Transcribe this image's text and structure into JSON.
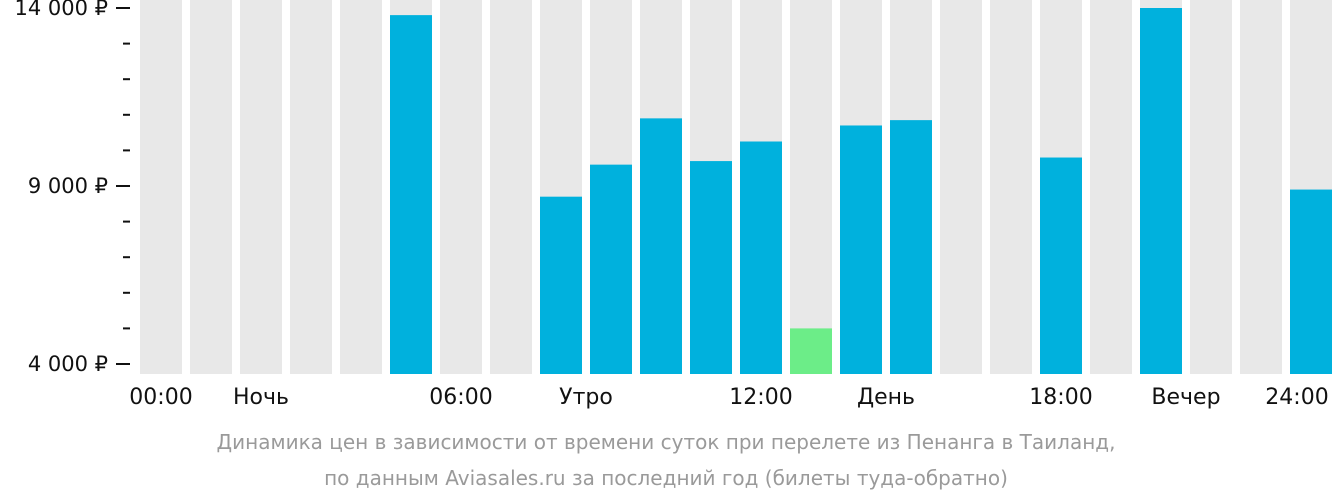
{
  "chart_data": {
    "type": "bar",
    "y_unit": "₽",
    "ylim": [
      4000,
      14000
    ],
    "y_ticks": [
      {
        "value": 4000,
        "label": "4 000 ₽"
      },
      {
        "value": 9000,
        "label": "9 000 ₽"
      },
      {
        "value": 14000,
        "label": "14 000 ₽"
      }
    ],
    "y_minor_ticks": [
      5000,
      6000,
      7000,
      8000,
      10000,
      11000,
      12000,
      13000
    ],
    "x_labels": [
      {
        "slot": 0,
        "label": "00:00"
      },
      {
        "slot": 2,
        "label": "Ночь"
      },
      {
        "slot": 6,
        "label": "06:00"
      },
      {
        "slot": 8.5,
        "label": "Утро"
      },
      {
        "slot": 12,
        "label": "12:00"
      },
      {
        "slot": 14.5,
        "label": "День"
      },
      {
        "slot": 18,
        "label": "18:00"
      },
      {
        "slot": 20.5,
        "label": "Вечер"
      },
      {
        "slot": 24,
        "label": "24:00"
      }
    ],
    "categories": [
      "00",
      "01",
      "02",
      "03",
      "04",
      "05",
      "06",
      "07",
      "08",
      "09",
      "10",
      "11",
      "12",
      "13",
      "14",
      "15",
      "16",
      "17",
      "18",
      "19",
      "20",
      "21",
      "22",
      "23"
    ],
    "values": [
      null,
      null,
      null,
      null,
      null,
      13800,
      null,
      null,
      8700,
      9600,
      10900,
      9700,
      10250,
      5000,
      10700,
      10850,
      null,
      null,
      9800,
      null,
      14000,
      null,
      null,
      8900
    ],
    "cheapest_index": 13,
    "colors": {
      "bar": "#00b1dd",
      "cheapest": "#6ced88",
      "slot_background": "#e8e8e8",
      "axis": "#111111"
    }
  },
  "caption": {
    "line1": "Динамика цен в зависимости от времени суток при перелете из Пенанга в Таиланд,",
    "line2": "по данным Aviasales.ru за последний год (билеты туда-обратно)"
  }
}
